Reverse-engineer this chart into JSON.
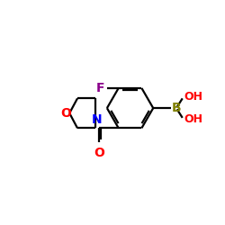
{
  "bg_color": "#ffffff",
  "bond_color": "#000000",
  "bond_width": 1.6,
  "atom_colors": {
    "F": "#8B008B",
    "O_ring": "#FF0000",
    "N": "#0000FF",
    "O_carbonyl": "#FF0000",
    "B": "#808000",
    "OH": "#FF0000"
  },
  "font_size_atoms": 10,
  "font_size_oh": 9
}
